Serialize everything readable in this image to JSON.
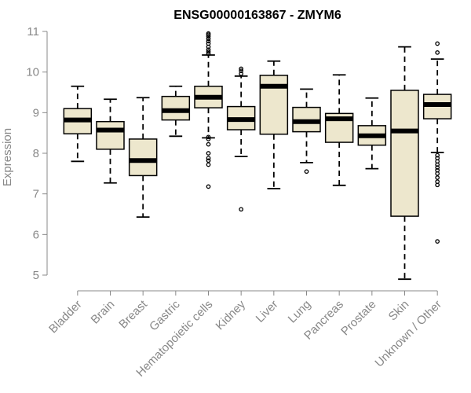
{
  "chart_data": {
    "type": "box",
    "title": "ENSG00000163867 - ZMYM6",
    "ylabel": "Expression",
    "xlabel": "",
    "ylim": [
      4.8,
      11.1
    ],
    "yticks": [
      5,
      6,
      7,
      8,
      9,
      10,
      11
    ],
    "colors": {
      "box_fill": "#ede7cd",
      "axis": "#888888",
      "line": "#000000"
    },
    "categories": [
      "Bladder",
      "Brain",
      "Breast",
      "Gastric",
      "Hematopoietic cells",
      "Kidney",
      "Liver",
      "Lung",
      "Pancreas",
      "Prostate",
      "Skin",
      "Unknown / Other"
    ],
    "boxes": [
      {
        "label": "Bladder",
        "whisker_low": 7.8,
        "q1": 8.48,
        "median": 8.82,
        "q3": 9.1,
        "whisker_high": 9.65,
        "outliers": []
      },
      {
        "label": "Brain",
        "whisker_low": 7.27,
        "q1": 8.1,
        "median": 8.57,
        "q3": 8.78,
        "whisker_high": 9.33,
        "outliers": []
      },
      {
        "label": "Breast",
        "whisker_low": 6.43,
        "q1": 7.45,
        "median": 7.82,
        "q3": 8.35,
        "whisker_high": 9.37,
        "outliers": []
      },
      {
        "label": "Gastric",
        "whisker_low": 8.42,
        "q1": 8.82,
        "median": 9.05,
        "q3": 9.4,
        "whisker_high": 9.65,
        "outliers": []
      },
      {
        "label": "Hematopoietic cells",
        "whisker_low": 8.38,
        "q1": 9.12,
        "median": 9.38,
        "q3": 9.65,
        "whisker_high": 10.42,
        "outliers": [
          7.18,
          7.72,
          7.82,
          7.88,
          8.0,
          8.22,
          8.35,
          8.4,
          10.45,
          10.5,
          10.55,
          10.62,
          10.7,
          10.76,
          10.82,
          10.88,
          10.92,
          10.95
        ]
      },
      {
        "label": "Kidney",
        "whisker_low": 7.92,
        "q1": 8.58,
        "median": 8.83,
        "q3": 9.15,
        "whisker_high": 9.9,
        "outliers": [
          6.62,
          9.96,
          10.03,
          10.08
        ]
      },
      {
        "label": "Liver",
        "whisker_low": 7.13,
        "q1": 8.47,
        "median": 9.65,
        "q3": 9.92,
        "whisker_high": 10.27,
        "outliers": []
      },
      {
        "label": "Lung",
        "whisker_low": 7.77,
        "q1": 8.53,
        "median": 8.78,
        "q3": 9.13,
        "whisker_high": 9.58,
        "outliers": [
          7.55
        ]
      },
      {
        "label": "Pancreas",
        "whisker_low": 7.21,
        "q1": 8.27,
        "median": 8.85,
        "q3": 8.98,
        "whisker_high": 9.93,
        "outliers": []
      },
      {
        "label": "Prostate",
        "whisker_low": 7.62,
        "q1": 8.2,
        "median": 8.43,
        "q3": 8.68,
        "whisker_high": 9.36,
        "outliers": []
      },
      {
        "label": "Skin",
        "whisker_low": 4.9,
        "q1": 6.45,
        "median": 8.55,
        "q3": 9.55,
        "whisker_high": 10.62,
        "outliers": []
      },
      {
        "label": "Unknown / Other",
        "whisker_low": 8.02,
        "q1": 8.85,
        "median": 9.2,
        "q3": 9.45,
        "whisker_high": 10.32,
        "outliers": [
          5.83,
          7.22,
          7.3,
          7.4,
          7.5,
          7.58,
          7.65,
          7.72,
          7.8,
          7.88,
          7.95,
          10.48,
          10.7
        ]
      }
    ]
  }
}
